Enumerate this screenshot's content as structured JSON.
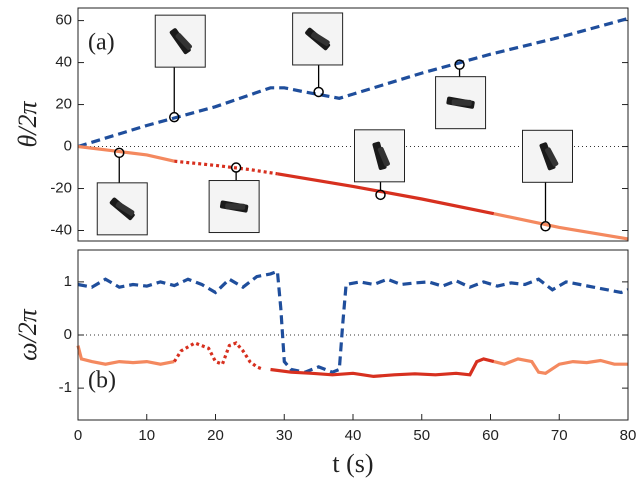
{
  "chart_data": [
    {
      "type": "line",
      "panel_label": "(a)",
      "ylabel": "θ/2π",
      "xlim": [
        0,
        80
      ],
      "ylim": [
        -45,
        66
      ],
      "yticks": [
        -40,
        -20,
        0,
        20,
        40,
        60
      ],
      "zero_line": true,
      "series": [
        {
          "color": "#1f4e9c",
          "style": "dashed",
          "x": [
            0,
            10,
            20,
            28,
            30,
            33,
            38,
            40,
            50,
            60,
            70,
            80
          ],
          "values": [
            0,
            10,
            19,
            28,
            28,
            26,
            23,
            25,
            35,
            44,
            52,
            61
          ]
        },
        {
          "color": "#f4895f",
          "style": "solid",
          "x": [
            0,
            5,
            10,
            14
          ],
          "values": [
            0,
            -2,
            -4,
            -7
          ]
        },
        {
          "color": "#d7301f",
          "style": "dotted",
          "x": [
            14,
            20,
            25,
            29
          ],
          "values": [
            -7,
            -9,
            -11,
            -13
          ]
        },
        {
          "color": "#d7301f",
          "style": "solid",
          "x": [
            29,
            40,
            50,
            60.5
          ],
          "values": [
            -13,
            -19,
            -25,
            -32
          ]
        },
        {
          "color": "#f4895f",
          "style": "solid",
          "x": [
            60.5,
            70,
            80
          ],
          "values": [
            -32,
            -38.5,
            -44
          ]
        }
      ],
      "markers": {
        "x": [
          6,
          14,
          23,
          35,
          44,
          55.5,
          68
        ],
        "values": [
          -3,
          14,
          -10,
          26,
          -23,
          39,
          -38
        ]
      }
    },
    {
      "type": "line",
      "panel_label": "(b)",
      "ylabel": "ω/2π",
      "xlabel": "t (s)",
      "xlim": [
        0,
        80
      ],
      "xticks": [
        0,
        10,
        20,
        30,
        40,
        50,
        60,
        70,
        80
      ],
      "ylim": [
        -1.6,
        1.6
      ],
      "yticks": [
        -1,
        0,
        1
      ],
      "zero_line": true,
      "series": [
        {
          "color": "#1f4e9c",
          "style": "dashed",
          "x": [
            0,
            2,
            4,
            6,
            8,
            10,
            12,
            14,
            16,
            18,
            20,
            22,
            24,
            26,
            28,
            29,
            29.5,
            30,
            31,
            33,
            35,
            37,
            38,
            38.5,
            39,
            41,
            43,
            45,
            47,
            49,
            51,
            53,
            55,
            57,
            59,
            61,
            63,
            65,
            67,
            69,
            71,
            73,
            75,
            77,
            79,
            80
          ],
          "values": [
            0.95,
            0.9,
            1.05,
            0.9,
            0.95,
            0.92,
            1.0,
            0.93,
            1.05,
            0.95,
            0.8,
            1.05,
            0.9,
            1.1,
            1.15,
            1.2,
            0.5,
            -0.5,
            -0.65,
            -0.7,
            -0.6,
            -0.7,
            -0.65,
            0.2,
            0.95,
            1.0,
            0.95,
            1.05,
            0.95,
            0.98,
            1.0,
            0.92,
            1.02,
            0.9,
            1.0,
            0.92,
            0.98,
            0.95,
            1.05,
            0.85,
            1.0,
            0.95,
            0.9,
            0.85,
            0.8,
            0.85
          ]
        },
        {
          "color": "#f4895f",
          "style": "solid",
          "x": [
            0,
            0.5,
            2,
            4,
            6,
            8,
            10,
            12,
            14
          ],
          "values": [
            -0.2,
            -0.45,
            -0.5,
            -0.55,
            -0.5,
            -0.52,
            -0.5,
            -0.55,
            -0.5
          ]
        },
        {
          "color": "#d7301f",
          "style": "dotted",
          "x": [
            14,
            15,
            17,
            19,
            20,
            21,
            22,
            23,
            24,
            25,
            26,
            27
          ],
          "values": [
            -0.5,
            -0.3,
            -0.15,
            -0.25,
            -0.5,
            -0.55,
            -0.2,
            -0.15,
            -0.3,
            -0.5,
            -0.6,
            -0.65
          ]
        },
        {
          "color": "#d7301f",
          "style": "solid",
          "x": [
            28,
            31,
            34,
            37,
            40,
            43,
            46,
            49,
            52,
            55,
            57,
            58,
            59,
            60.5
          ],
          "values": [
            -0.65,
            -0.7,
            -0.72,
            -0.75,
            -0.72,
            -0.78,
            -0.75,
            -0.73,
            -0.75,
            -0.72,
            -0.75,
            -0.5,
            -0.45,
            -0.5
          ]
        },
        {
          "color": "#f4895f",
          "style": "solid",
          "x": [
            60.5,
            62,
            64,
            66,
            67,
            68,
            70,
            72,
            74,
            76,
            78,
            80
          ],
          "values": [
            -0.5,
            -0.55,
            -0.45,
            -0.5,
            -0.7,
            -0.72,
            -0.55,
            -0.5,
            -0.52,
            -0.48,
            -0.55,
            -0.55
          ]
        }
      ]
    }
  ]
}
